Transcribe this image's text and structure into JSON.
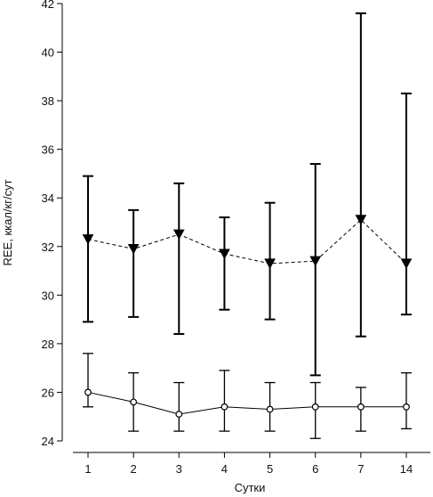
{
  "chart_data": {
    "type": "line",
    "xlabel": "Сутки",
    "ylabel": "REE, ккал/кг/сут",
    "categories": [
      "1",
      "2",
      "3",
      "4",
      "5",
      "6",
      "7",
      "14"
    ],
    "ylim": [
      24,
      42
    ],
    "yticks": [
      24,
      26,
      28,
      30,
      32,
      34,
      36,
      38,
      40,
      42
    ],
    "grid": false,
    "series": [
      {
        "marker": "filled-down-triangle",
        "line_style": "dashed",
        "color": "#000000",
        "values": [
          32.3,
          31.9,
          32.5,
          31.7,
          31.3,
          31.4,
          33.1,
          31.3
        ],
        "err_low": [
          28.9,
          29.1,
          28.4,
          29.4,
          29.0,
          26.7,
          28.3,
          29.2
        ],
        "err_high": [
          34.9,
          33.5,
          34.6,
          33.2,
          33.8,
          35.4,
          41.6,
          38.3
        ]
      },
      {
        "marker": "open-circle",
        "line_style": "solid",
        "color": "#000000",
        "values": [
          26.0,
          25.6,
          25.1,
          25.4,
          25.3,
          25.4,
          25.4,
          25.4
        ],
        "err_low": [
          25.4,
          24.4,
          24.4,
          24.4,
          24.4,
          24.1,
          24.4,
          24.5
        ],
        "err_high": [
          27.6,
          26.8,
          26.4,
          26.9,
          26.4,
          26.4,
          26.2,
          26.8
        ]
      }
    ]
  }
}
